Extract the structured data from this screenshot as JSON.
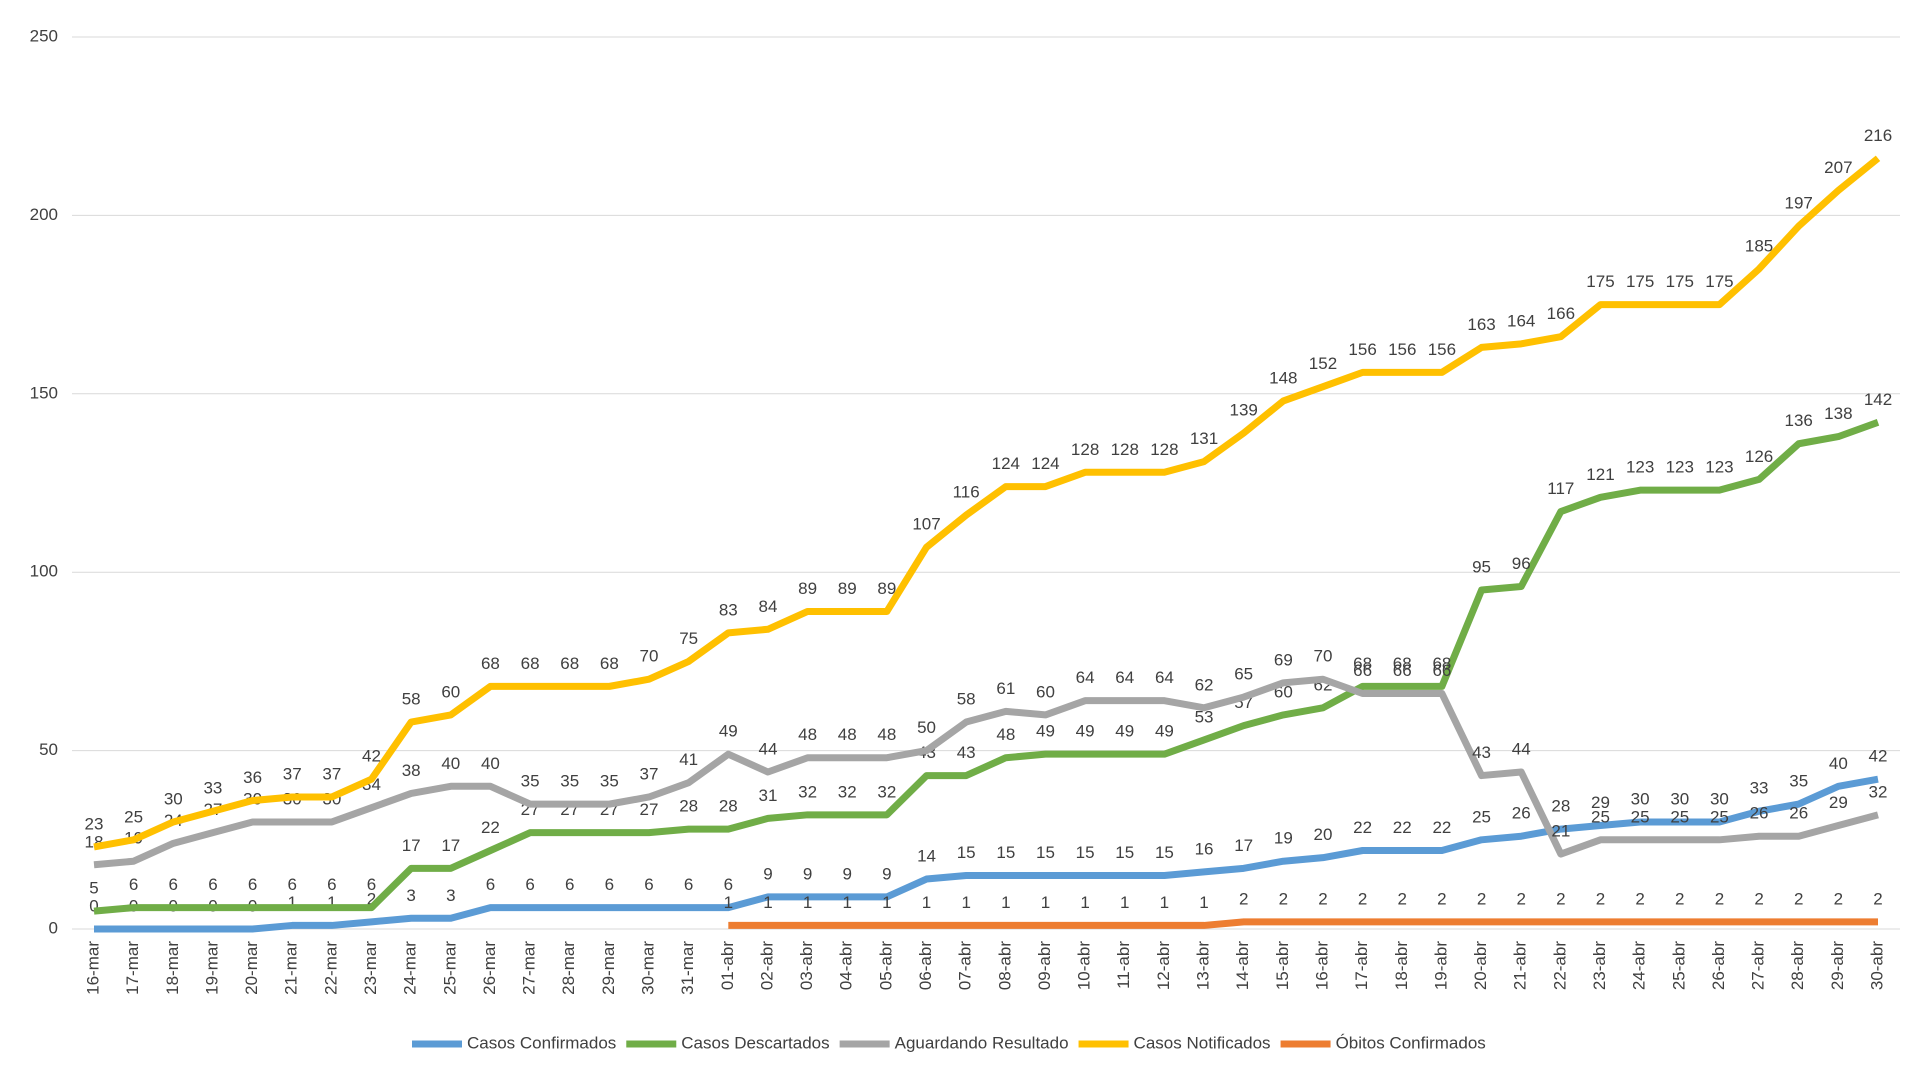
{
  "chart_data": {
    "type": "line",
    "categories": [
      "16-mar",
      "17-mar",
      "18-mar",
      "19-mar",
      "20-mar",
      "21-mar",
      "22-mar",
      "23-mar",
      "24-mar",
      "25-mar",
      "26-mar",
      "27-mar",
      "28-mar",
      "29-mar",
      "30-mar",
      "31-mar",
      "01-abr",
      "02-abr",
      "03-abr",
      "04-abr",
      "05-abr",
      "06-abr",
      "07-abr",
      "08-abr",
      "09-abr",
      "10-abr",
      "11-abr",
      "12-abr",
      "13-abr",
      "14-abr",
      "15-abr",
      "16-abr",
      "17-abr",
      "18-abr",
      "19-abr",
      "20-abr",
      "21-abr",
      "22-abr",
      "23-abr",
      "24-abr",
      "25-abr",
      "26-abr",
      "27-abr",
      "28-abr",
      "29-abr",
      "30-abr"
    ],
    "series": [
      {
        "name": "Casos Confirmados",
        "color": "#5b9bd5",
        "values": [
          0,
          0,
          0,
          0,
          0,
          1,
          1,
          2,
          3,
          3,
          6,
          6,
          6,
          6,
          6,
          6,
          6,
          9,
          9,
          9,
          9,
          14,
          15,
          15,
          15,
          15,
          15,
          15,
          16,
          17,
          19,
          20,
          22,
          22,
          22,
          25,
          26,
          28,
          29,
          30,
          30,
          30,
          33,
          35,
          40,
          42
        ]
      },
      {
        "name": "Casos Descartados",
        "color": "#70ad47",
        "values": [
          5,
          6,
          6,
          6,
          6,
          6,
          6,
          6,
          17,
          17,
          22,
          27,
          27,
          27,
          27,
          28,
          28,
          31,
          32,
          32,
          32,
          43,
          43,
          48,
          49,
          49,
          49,
          49,
          53,
          57,
          60,
          62,
          68,
          68,
          68,
          95,
          96,
          117,
          121,
          123,
          123,
          123,
          126,
          136,
          138,
          142
        ]
      },
      {
        "name": "Aguardando Resultado",
        "color": "#a5a5a5",
        "values": [
          18,
          19,
          24,
          27,
          30,
          30,
          30,
          34,
          38,
          40,
          40,
          35,
          35,
          35,
          37,
          41,
          49,
          44,
          48,
          48,
          48,
          50,
          58,
          61,
          60,
          64,
          64,
          64,
          62,
          65,
          69,
          70,
          66,
          66,
          66,
          43,
          44,
          21,
          25,
          25,
          25,
          25,
          26,
          26,
          29,
          32
        ]
      },
      {
        "name": "Casos Notificados",
        "color": "#ffc000",
        "values": [
          23,
          25,
          30,
          33,
          36,
          37,
          37,
          42,
          58,
          60,
          68,
          68,
          68,
          68,
          70,
          75,
          83,
          84,
          89,
          89,
          89,
          107,
          116,
          124,
          124,
          128,
          128,
          128,
          131,
          139,
          148,
          152,
          156,
          156,
          156,
          163,
          164,
          166,
          175,
          175,
          175,
          175,
          185,
          197,
          207,
          216
        ]
      },
      {
        "name": "Óbitos Confirmados",
        "color": "#ed7d31",
        "values": [
          null,
          null,
          null,
          null,
          null,
          null,
          null,
          null,
          null,
          null,
          null,
          null,
          null,
          null,
          null,
          null,
          1,
          1,
          1,
          1,
          1,
          1,
          1,
          1,
          1,
          1,
          1,
          1,
          1,
          2,
          2,
          2,
          2,
          2,
          2,
          2,
          2,
          2,
          2,
          2,
          2,
          2,
          2,
          2,
          2,
          2
        ]
      }
    ],
    "ylim": [
      0,
      250
    ],
    "yticks": [
      0,
      50,
      100,
      150,
      200,
      250
    ],
    "grid": true,
    "legend": "bottom"
  }
}
